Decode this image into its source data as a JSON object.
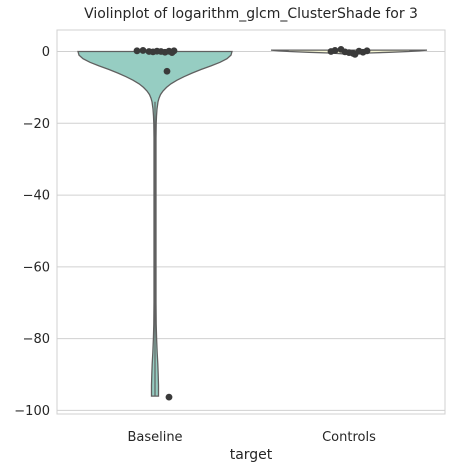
{
  "chart_data": {
    "type": "violin",
    "title": "Violinplot of logarithm_glcm_ClusterShade for 3",
    "xlabel": "target",
    "ylabel": "",
    "categories": [
      "Baseline",
      "Controls"
    ],
    "ylim": [
      -101,
      6
    ],
    "yticks": [
      0,
      -20,
      -40,
      -60,
      -80,
      -100
    ],
    "ytick_labels": [
      "0",
      "−20",
      "−40",
      "−60",
      "−80",
      "−100"
    ],
    "grid": true,
    "colors": {
      "Baseline": "#96cdc2",
      "Controls": "#f6f6d3",
      "points": "#3a3a3a"
    },
    "points": {
      "Baseline": [
        0.2,
        0.3,
        0.0,
        -0.1,
        0.1,
        0.0,
        -0.2,
        0.1,
        -0.3,
        0.2,
        -5.5,
        -96.3
      ],
      "Controls": [
        0.6,
        0.3,
        0.0,
        -0.1,
        -0.3,
        -0.5,
        -0.8,
        0.1,
        -0.2,
        0.2
      ]
    }
  }
}
